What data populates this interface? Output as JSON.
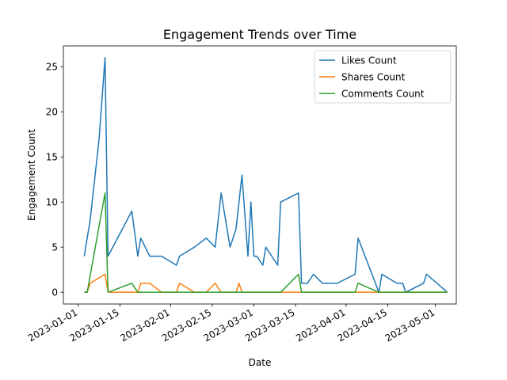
{
  "chart_data": {
    "type": "line",
    "title": "Engagement Trends over Time",
    "xlabel": "Date",
    "ylabel": "Engagement Count",
    "xlim": [
      "2022-12-27",
      "2023-05-08"
    ],
    "ylim": [
      -1.3,
      27.3
    ],
    "x_ticks": [
      "2023-01-01",
      "2023-01-15",
      "2023-02-01",
      "2023-02-15",
      "2023-03-01",
      "2023-03-15",
      "2023-04-01",
      "2023-04-15",
      "2023-05-01"
    ],
    "y_ticks": [
      0,
      5,
      10,
      15,
      20,
      25
    ],
    "legend_position": "top-right",
    "grid": false,
    "series": [
      {
        "name": "Likes Count",
        "color": "#1f77b4",
        "points": [
          [
            "2023-01-03",
            4
          ],
          [
            "2023-01-04",
            6
          ],
          [
            "2023-01-05",
            8
          ],
          [
            "2023-01-08",
            17
          ],
          [
            "2023-01-10",
            26
          ],
          [
            "2023-01-11",
            4
          ],
          [
            "2023-01-19",
            9
          ],
          [
            "2023-01-21",
            4
          ],
          [
            "2023-01-22",
            6
          ],
          [
            "2023-01-25",
            4
          ],
          [
            "2023-01-29",
            4
          ],
          [
            "2023-02-03",
            3
          ],
          [
            "2023-02-04",
            4
          ],
          [
            "2023-02-09",
            5
          ],
          [
            "2023-02-13",
            6
          ],
          [
            "2023-02-16",
            5
          ],
          [
            "2023-02-18",
            11
          ],
          [
            "2023-02-21",
            5
          ],
          [
            "2023-02-23",
            7
          ],
          [
            "2023-02-25",
            13
          ],
          [
            "2023-02-27",
            4
          ],
          [
            "2023-02-28",
            10
          ],
          [
            "2023-03-01",
            4
          ],
          [
            "2023-03-02",
            4
          ],
          [
            "2023-03-04",
            3
          ],
          [
            "2023-03-05",
            5
          ],
          [
            "2023-03-09",
            3
          ],
          [
            "2023-03-10",
            10
          ],
          [
            "2023-03-16",
            11
          ],
          [
            "2023-03-17",
            1
          ],
          [
            "2023-03-19",
            1
          ],
          [
            "2023-03-21",
            2
          ],
          [
            "2023-03-24",
            1
          ],
          [
            "2023-03-29",
            1
          ],
          [
            "2023-04-04",
            2
          ],
          [
            "2023-04-05",
            6
          ],
          [
            "2023-04-12",
            0
          ],
          [
            "2023-04-13",
            2
          ],
          [
            "2023-04-18",
            1
          ],
          [
            "2023-04-20",
            1
          ],
          [
            "2023-04-21",
            0
          ],
          [
            "2023-04-27",
            1
          ],
          [
            "2023-04-28",
            2
          ],
          [
            "2023-05-05",
            0
          ]
        ]
      },
      {
        "name": "Shares Count",
        "color": "#ff7f0e",
        "points": [
          [
            "2023-01-03",
            0
          ],
          [
            "2023-01-04",
            0
          ],
          [
            "2023-01-05",
            1
          ],
          [
            "2023-01-10",
            2
          ],
          [
            "2023-01-11",
            0
          ],
          [
            "2023-01-21",
            0
          ],
          [
            "2023-01-22",
            1
          ],
          [
            "2023-01-25",
            1
          ],
          [
            "2023-01-29",
            0
          ],
          [
            "2023-02-03",
            0
          ],
          [
            "2023-02-04",
            1
          ],
          [
            "2023-02-09",
            0
          ],
          [
            "2023-02-13",
            0
          ],
          [
            "2023-02-16",
            1
          ],
          [
            "2023-02-18",
            0
          ],
          [
            "2023-02-23",
            0
          ],
          [
            "2023-02-24",
            1
          ],
          [
            "2023-02-25",
            0
          ],
          [
            "2023-05-05",
            0
          ]
        ]
      },
      {
        "name": "Comments Count",
        "color": "#2ca02c",
        "points": [
          [
            "2023-01-03",
            0
          ],
          [
            "2023-01-04",
            0
          ],
          [
            "2023-01-10",
            11
          ],
          [
            "2023-01-11",
            0
          ],
          [
            "2023-01-19",
            1
          ],
          [
            "2023-01-21",
            0
          ],
          [
            "2023-03-10",
            0
          ],
          [
            "2023-03-16",
            2
          ],
          [
            "2023-03-17",
            0
          ],
          [
            "2023-04-04",
            0
          ],
          [
            "2023-04-05",
            1
          ],
          [
            "2023-04-12",
            0
          ],
          [
            "2023-05-05",
            0
          ]
        ]
      }
    ]
  }
}
